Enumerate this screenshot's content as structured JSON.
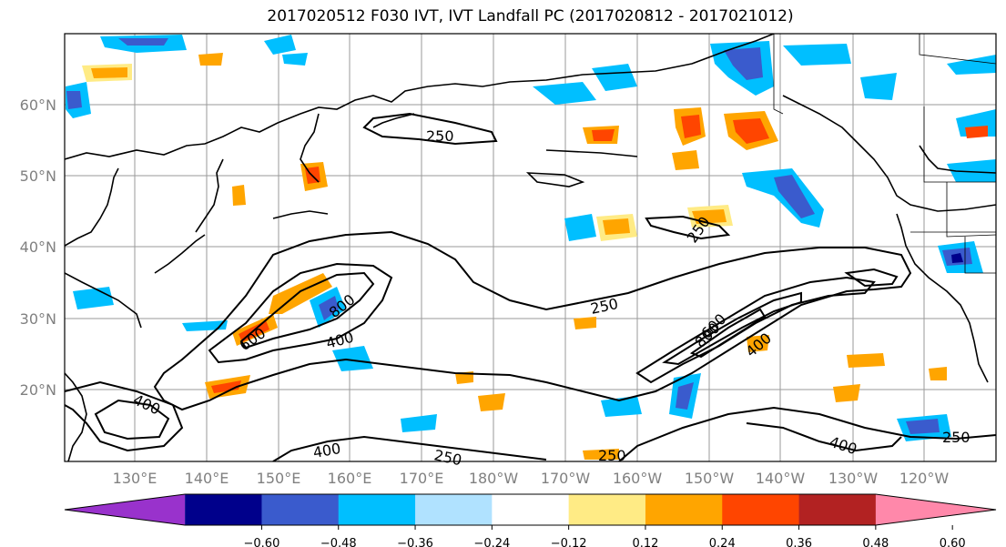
{
  "title": "2017020512 F030 IVT, IVT Landfall PC (2017020812 - 2017021012)",
  "lat_labels": [
    "60°N",
    "50°N",
    "40°N",
    "30°N",
    "20°N"
  ],
  "lon_labels": [
    "130°E",
    "140°E",
    "150°E",
    "160°E",
    "170°E",
    "180°W",
    "170°W",
    "160°W",
    "150°W",
    "140°W",
    "130°W",
    "120°W"
  ],
  "contour_labels": [
    "250",
    "250",
    "250",
    "250",
    "250",
    "250",
    "400",
    "400",
    "400",
    "400",
    "600",
    "600",
    "800",
    "800"
  ],
  "colorbar": {
    "colors": [
      "#9932cc",
      "#00008b",
      "#3a5bcd",
      "#00bfff",
      "#b0e2ff",
      "#ffffff",
      "#ffeb85",
      "#ffa500",
      "#ff4500",
      "#b22222",
      "#ff88aa"
    ],
    "ticks": [
      "−0.60",
      "−0.48",
      "−0.36",
      "−0.24",
      "−0.12",
      "0.12",
      "0.24",
      "0.36",
      "0.48",
      "0.60"
    ]
  }
}
